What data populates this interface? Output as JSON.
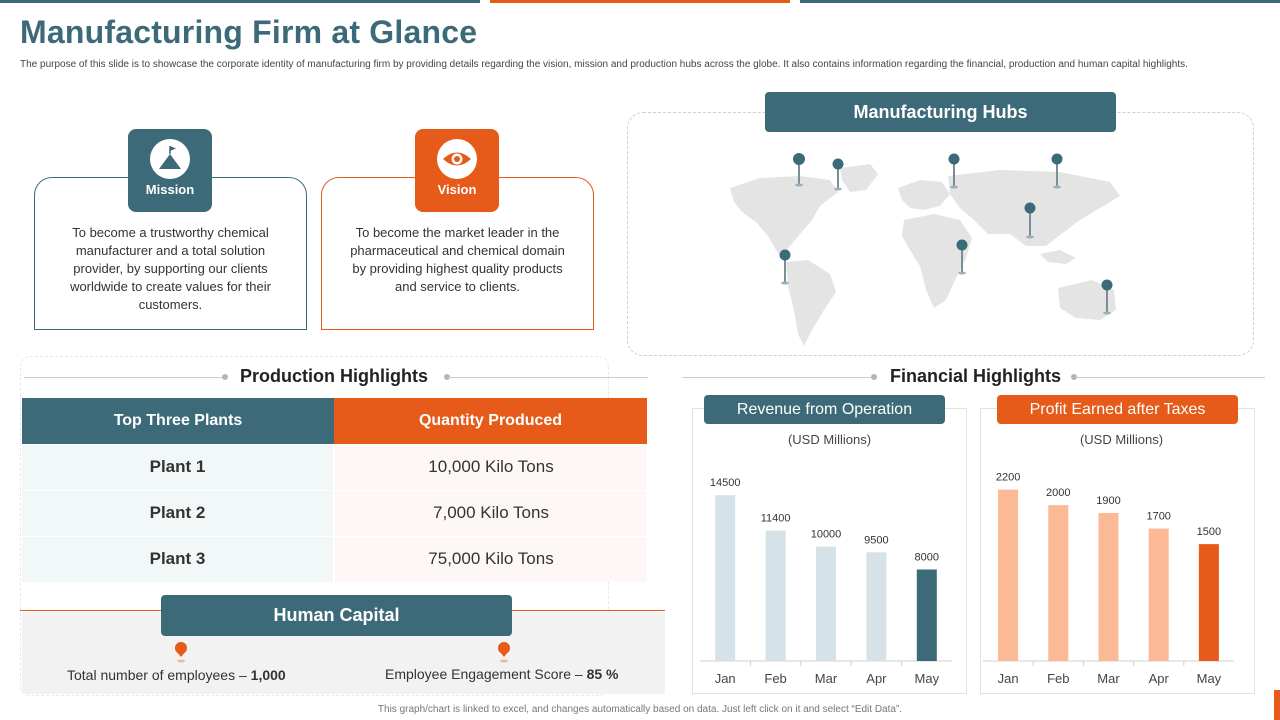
{
  "page": {
    "title": "Manufacturing Firm at Glance",
    "subtitle": "The purpose of this slide is to showcase the corporate identity of manufacturing firm by providing details regarding the vision, mission and production hubs across the globe. It also contains information regarding the financial, production and human capital highlights.",
    "footer": "This graph/chart is linked to excel, and changes automatically based on data. Just left click on it and select “Edit Data”."
  },
  "mission": {
    "label": "Mission",
    "icon": "mountain-flag-icon",
    "text": "To become a trustworthy chemical manufacturer and a total solution provider, by supporting our clients worldwide to create values for their customers."
  },
  "vision": {
    "label": "Vision",
    "icon": "eye-icon",
    "text": "To become the market leader in the pharmaceutical and chemical domain by providing highest quality products and service to clients."
  },
  "hubs": {
    "title": "Manufacturing  Hubs",
    "icon": "world-map-with-pins"
  },
  "production": {
    "title": "Production  Highlights",
    "headers": [
      "Top Three Plants",
      "Quantity Produced"
    ],
    "rows": [
      {
        "plant": "Plant 1",
        "quantity": "10,000 Kilo Tons"
      },
      {
        "plant": "Plant 2",
        "quantity": "7,000 Kilo Tons"
      },
      {
        "plant": "Plant 3",
        "quantity": "75,000 Kilo Tons"
      }
    ]
  },
  "human_capital": {
    "title": "Human Capital",
    "employees_label": "Total number  of employees – ",
    "employees_value": "1,000",
    "engagement_label": "Employee  Engagement Score – ",
    "engagement_value": "85 %"
  },
  "financial": {
    "title": "Financial  Highlights"
  },
  "colors": {
    "teal": "#3d6a78",
    "orange": "#e65a1a",
    "light_teal": "#d5e3e8",
    "light_orange": "#fbb995"
  },
  "chart_data": [
    {
      "type": "bar",
      "title": "Revenue from Operation",
      "subtitle": "(USD Millions)",
      "categories": [
        "Jan",
        "Feb",
        "Mar",
        "Apr",
        "May"
      ],
      "values": [
        14500,
        11400,
        10000,
        9500,
        8000
      ],
      "ylim": [
        0,
        16000
      ],
      "grid": false,
      "bar_color": "#d5e3e8",
      "highlight_color": "#3d6a78",
      "highlight_index": 4
    },
    {
      "type": "bar",
      "title": "Profit Earned after Taxes",
      "subtitle": "(USD Millions)",
      "categories": [
        "Jan",
        "Feb",
        "Mar",
        "Apr",
        "May"
      ],
      "values": [
        2200,
        2000,
        1900,
        1700,
        1500
      ],
      "ylim": [
        0,
        2400
      ],
      "grid": false,
      "bar_color": "#fbb995",
      "highlight_color": "#e65a1a",
      "highlight_index": 4
    }
  ]
}
